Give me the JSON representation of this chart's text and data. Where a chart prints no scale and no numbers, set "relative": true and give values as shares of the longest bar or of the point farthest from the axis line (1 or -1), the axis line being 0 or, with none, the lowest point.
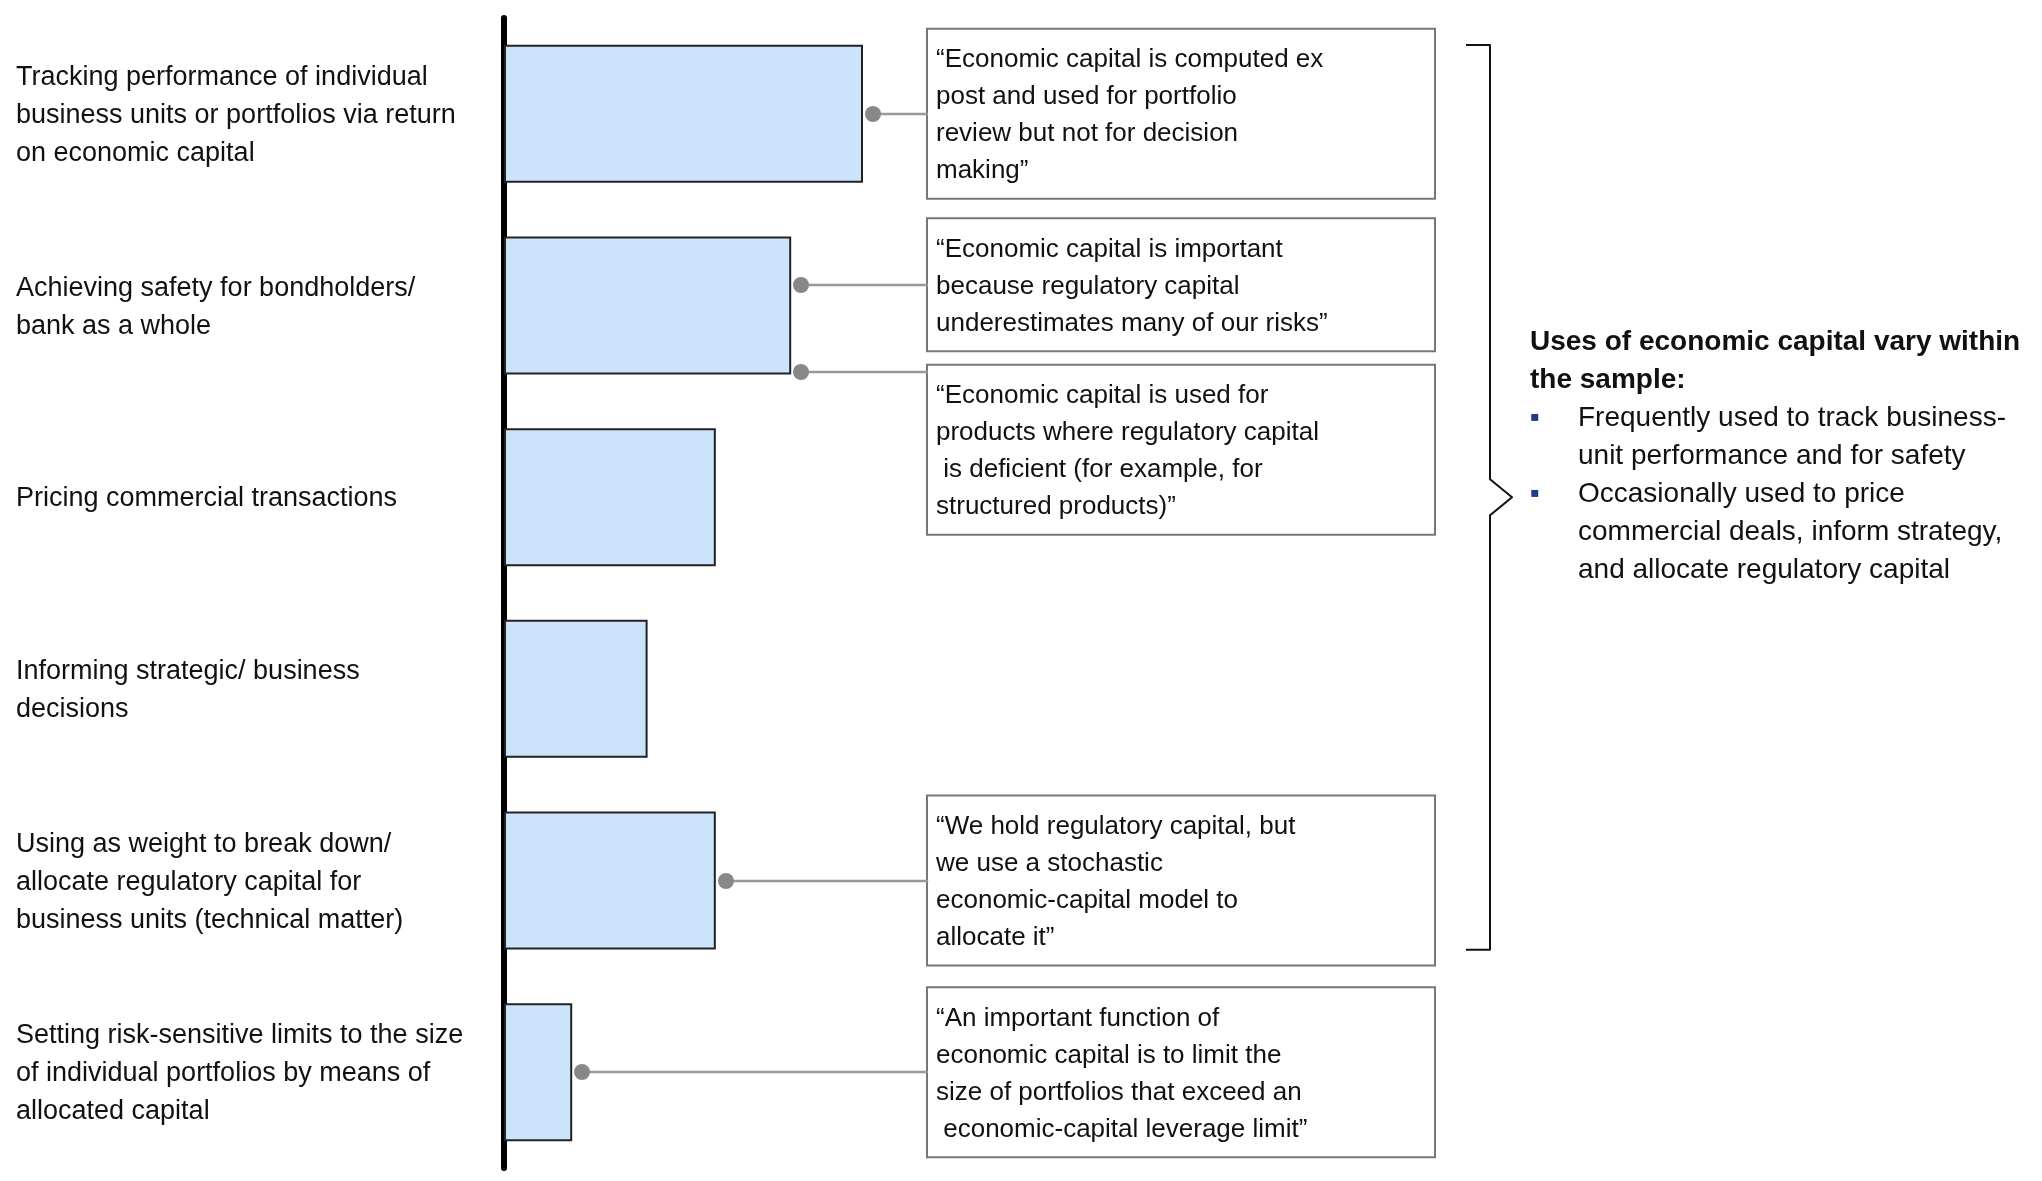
{
  "chart_data": {
    "type": "bar",
    "orientation": "horizontal",
    "relative": true,
    "color": "#cce4fb",
    "categories": [
      "Tracking performance of individual business units or portfolios via return on economic capital",
      "Achieving safety for bondholders/bank as a whole",
      "Pricing commercial transactions",
      "Informing strategic/ business decisions",
      "Using as weight to break down/allocate regulatory capital for business units (technical matter)",
      "Setting risk-sensitive limits to the size of individual portfolios by means of allocated capital"
    ],
    "values": [
      1,
      0.8,
      0.59,
      0.4,
      0.59,
      0.19
    ],
    "annotations": [
      "“Economic capital is computed ex post and used for portfolio review but not for decision making”",
      "“Economic capital is important because regulatory capital underestimates many of our risks”",
      "“Economic capital is used for products where regulatory capital is deficient (for example, for structured products)”",
      "“We hold regulatory capital, but we use a stochastic economic-capital model to allocate it”",
      "“An important function of economic capital is to limit the size of portfolios that exceed an economic-capital leverage limit”",
      "Uses of economic capital vary within the sample:",
      "▪ Frequently used to track business-unit performance and for safety",
      "▪ Occasionally used to price commercial deals, inform strategy, and allocate regulatory capital"
    ]
  }
}
